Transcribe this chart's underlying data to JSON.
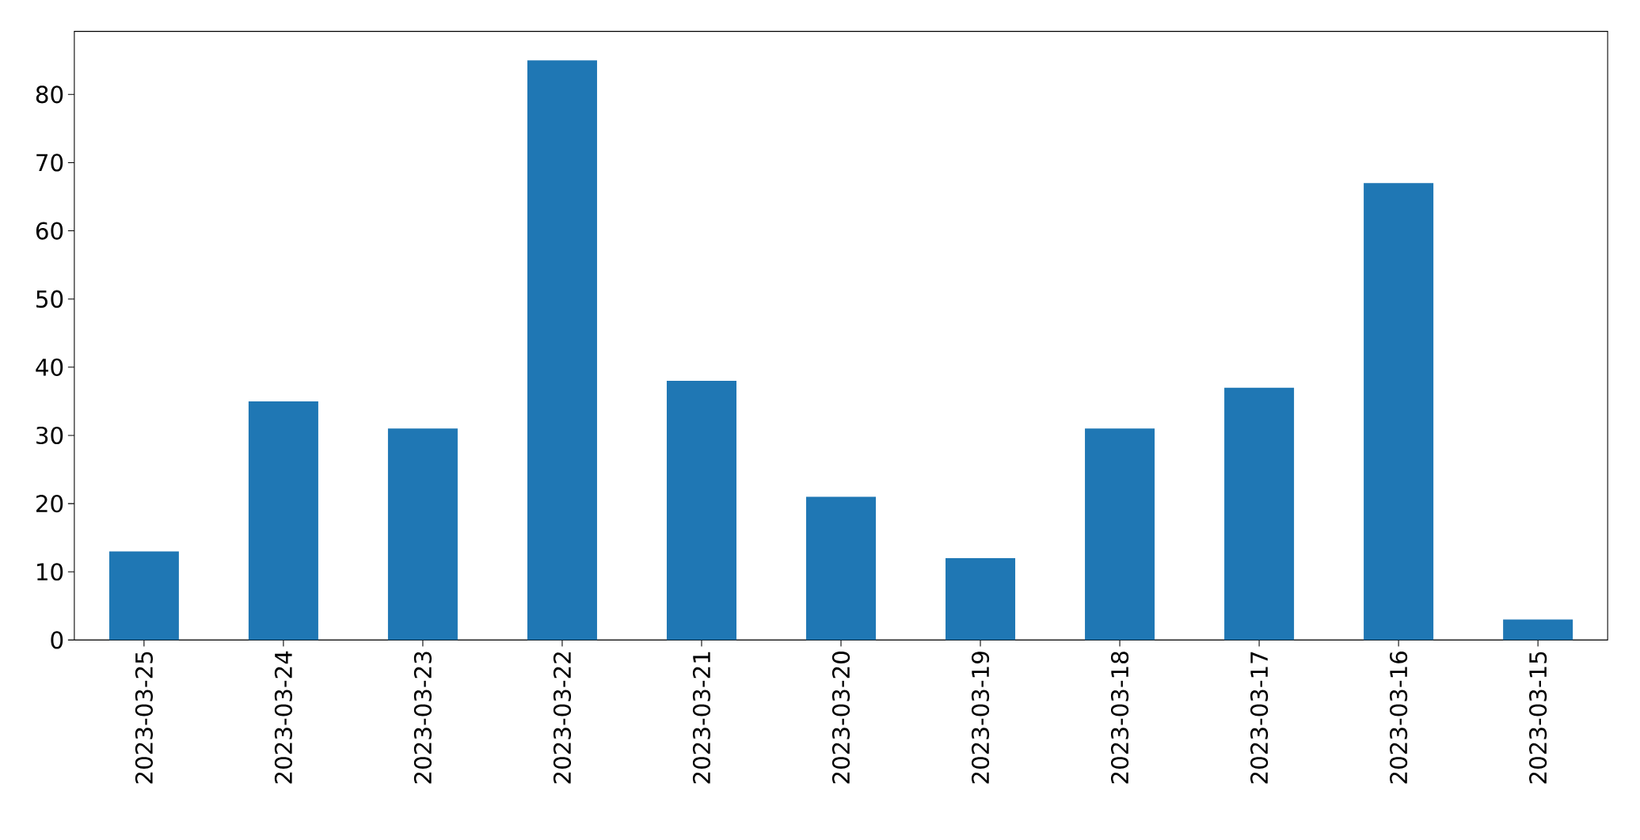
{
  "chart_data": {
    "type": "bar",
    "categories": [
      "2023-03-25",
      "2023-03-24",
      "2023-03-23",
      "2023-03-22",
      "2023-03-21",
      "2023-03-20",
      "2023-03-19",
      "2023-03-18",
      "2023-03-17",
      "2023-03-16",
      "2023-03-15"
    ],
    "values": [
      13,
      35,
      31,
      85,
      38,
      21,
      12,
      31,
      37,
      67,
      3
    ],
    "color": "#1f77b4",
    "ylim": [
      0,
      89.25
    ],
    "yticks": [
      0,
      10,
      20,
      30,
      40,
      50,
      60,
      70,
      80
    ]
  }
}
